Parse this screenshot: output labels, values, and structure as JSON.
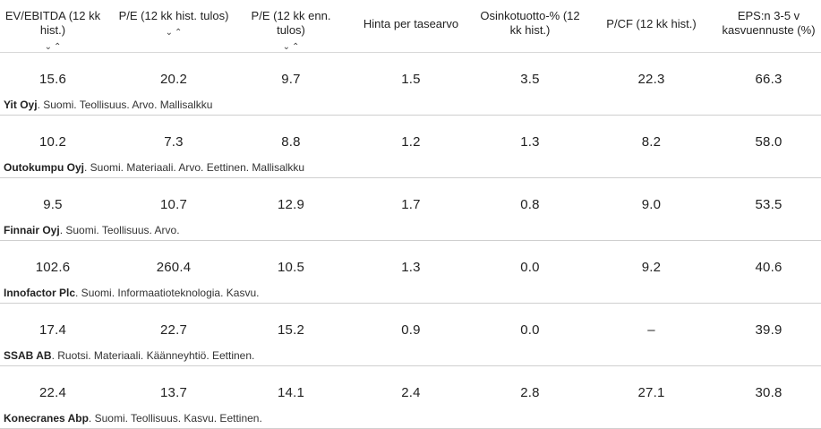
{
  "columns": [
    {
      "label": "EV/EBITDA (12 kk hist.)"
    },
    {
      "label": "P/E (12 kk hist. tulos)"
    },
    {
      "label": "P/E (12 kk enn. tulos)"
    },
    {
      "label": "Hinta per tasearvo"
    },
    {
      "label": "Osinkotuotto-% (12 kk hist.)"
    },
    {
      "label": "P/CF (12 kk hist.)"
    },
    {
      "label": "EPS:n 3-5 v kasvuennuste (%)"
    }
  ],
  "sort_glyphs": {
    "down": "⌄",
    "up": "⌃"
  },
  "rows": [
    {
      "values": [
        "15.6",
        "20.2",
        "9.7",
        "1.5",
        "3.5",
        "22.3",
        "66.3"
      ],
      "name": "Yit Oyj",
      "tags": ". Suomi. Teollisuus. Arvo. Mallisalkku"
    },
    {
      "values": [
        "10.2",
        "7.3",
        "8.8",
        "1.2",
        "1.3",
        "8.2",
        "58.0"
      ],
      "name": "Outokumpu Oyj",
      "tags": ". Suomi. Materiaali. Arvo. Eettinen. Mallisalkku"
    },
    {
      "values": [
        "9.5",
        "10.7",
        "12.9",
        "1.7",
        "0.8",
        "9.0",
        "53.5"
      ],
      "name": "Finnair Oyj",
      "tags": ". Suomi. Teollisuus. Arvo."
    },
    {
      "values": [
        "102.6",
        "260.4",
        "10.5",
        "1.3",
        "0.0",
        "9.2",
        "40.6"
      ],
      "name": "Innofactor Plc",
      "tags": ". Suomi. Informaatioteknologia. Kasvu."
    },
    {
      "values": [
        "17.4",
        "22.7",
        "15.2",
        "0.9",
        "0.0",
        "–",
        "39.9"
      ],
      "name": "SSAB AB",
      "tags": ". Ruotsi. Materiaali. Käänneyhtiö. Eettinen."
    },
    {
      "values": [
        "22.4",
        "13.7",
        "14.1",
        "2.4",
        "2.8",
        "27.1",
        "30.8"
      ],
      "name": "Konecranes Abp",
      "tags": ". Suomi. Teollisuus. Kasvu. Eettinen."
    }
  ]
}
